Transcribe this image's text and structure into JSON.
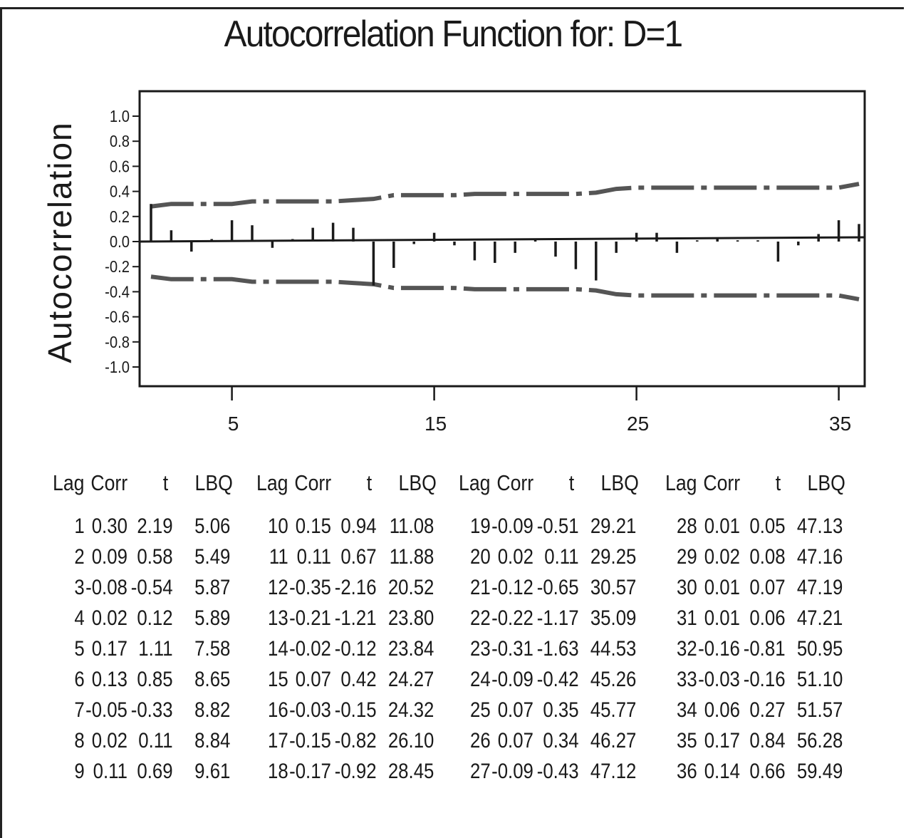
{
  "chart_data": {
    "type": "bar",
    "title": "Autocorrelation Function for: D=1",
    "ylabel": "Autocorrelation",
    "xlabel": "",
    "ylim": [
      -1.0,
      1.0
    ],
    "yticks": [
      "1.0",
      "0.8",
      "0.6",
      "0.4",
      "0.2",
      "0.0",
      "-0.2",
      "-0.4",
      "-0.6",
      "-0.8",
      "-1.0"
    ],
    "xticks": [
      "5",
      "15",
      "25",
      "35"
    ],
    "xtick_values": [
      5,
      15,
      25,
      35
    ],
    "lags": [
      1,
      2,
      3,
      4,
      5,
      6,
      7,
      8,
      9,
      10,
      11,
      12,
      13,
      14,
      15,
      16,
      17,
      18,
      19,
      20,
      21,
      22,
      23,
      24,
      25,
      26,
      27,
      28,
      29,
      30,
      31,
      32,
      33,
      34,
      35,
      36
    ],
    "values": [
      0.3,
      0.09,
      -0.08,
      0.02,
      0.17,
      0.13,
      -0.05,
      0.02,
      0.11,
      0.15,
      0.11,
      -0.35,
      -0.21,
      -0.02,
      0.07,
      -0.03,
      -0.15,
      -0.17,
      -0.09,
      0.02,
      -0.12,
      -0.22,
      -0.31,
      -0.09,
      0.07,
      0.07,
      -0.09,
      0.01,
      0.02,
      0.01,
      0.01,
      -0.16,
      -0.03,
      0.06,
      0.17,
      0.14
    ],
    "confidence_limit_upper": [
      0.28,
      0.3,
      0.3,
      0.3,
      0.3,
      0.32,
      0.32,
      0.32,
      0.32,
      0.32,
      0.33,
      0.34,
      0.37,
      0.37,
      0.37,
      0.37,
      0.38,
      0.38,
      0.38,
      0.38,
      0.38,
      0.38,
      0.39,
      0.42,
      0.43,
      0.43,
      0.43,
      0.43,
      0.43,
      0.43,
      0.43,
      0.43,
      0.43,
      0.43,
      0.43,
      0.46
    ],
    "confidence_limit_lower": [
      -0.28,
      -0.3,
      -0.3,
      -0.3,
      -0.3,
      -0.32,
      -0.32,
      -0.32,
      -0.32,
      -0.32,
      -0.33,
      -0.34,
      -0.37,
      -0.37,
      -0.37,
      -0.37,
      -0.38,
      -0.38,
      -0.38,
      -0.38,
      -0.38,
      -0.38,
      -0.39,
      -0.42,
      -0.43,
      -0.43,
      -0.43,
      -0.43,
      -0.43,
      -0.43,
      -0.43,
      -0.43,
      -0.43,
      -0.43,
      -0.43,
      -0.46
    ],
    "grid": false
  },
  "table": {
    "headers": [
      "Lag",
      "Corr",
      "t",
      "LBQ"
    ],
    "columns": [
      [
        [
          "1",
          "0.30",
          "2.19",
          "5.06"
        ],
        [
          "2",
          "0.09",
          "0.58",
          "5.49"
        ],
        [
          "3",
          "-0.08",
          "-0.54",
          "5.87"
        ],
        [
          "4",
          "0.02",
          "0.12",
          "5.89"
        ],
        [
          "5",
          "0.17",
          "1.11",
          "7.58"
        ],
        [
          "6",
          "0.13",
          "0.85",
          "8.65"
        ],
        [
          "7",
          "-0.05",
          "-0.33",
          "8.82"
        ],
        [
          "8",
          "0.02",
          "0.11",
          "8.84"
        ],
        [
          "9",
          "0.11",
          "0.69",
          "9.61"
        ]
      ],
      [
        [
          "10",
          "0.15",
          "0.94",
          "11.08"
        ],
        [
          "11",
          "0.11",
          "0.67",
          "11.88"
        ],
        [
          "12",
          "-0.35",
          "-2.16",
          "20.52"
        ],
        [
          "13",
          "-0.21",
          "-1.21",
          "23.80"
        ],
        [
          "14",
          "-0.02",
          "-0.12",
          "23.84"
        ],
        [
          "15",
          "0.07",
          "0.42",
          "24.27"
        ],
        [
          "16",
          "-0.03",
          "-0.15",
          "24.32"
        ],
        [
          "17",
          "-0.15",
          "-0.82",
          "26.10"
        ],
        [
          "18",
          "-0.17",
          "-0.92",
          "28.45"
        ]
      ],
      [
        [
          "19",
          "-0.09",
          "-0.51",
          "29.21"
        ],
        [
          "20",
          "0.02",
          "0.11",
          "29.25"
        ],
        [
          "21",
          "-0.12",
          "-0.65",
          "30.57"
        ],
        [
          "22",
          "-0.22",
          "-1.17",
          "35.09"
        ],
        [
          "23",
          "-0.31",
          "-1.63",
          "44.53"
        ],
        [
          "24",
          "-0.09",
          "-0.42",
          "45.26"
        ],
        [
          "25",
          "0.07",
          "0.35",
          "45.77"
        ],
        [
          "26",
          "0.07",
          "0.34",
          "46.27"
        ],
        [
          "27",
          "-0.09",
          "-0.43",
          "47.12"
        ]
      ],
      [
        [
          "28",
          "0.01",
          "0.05",
          "47.13"
        ],
        [
          "29",
          "0.02",
          "0.08",
          "47.16"
        ],
        [
          "30",
          "0.01",
          "0.07",
          "47.19"
        ],
        [
          "31",
          "0.01",
          "0.06",
          "47.21"
        ],
        [
          "32",
          "-0.16",
          "-0.81",
          "50.95"
        ],
        [
          "33",
          "-0.03",
          "-0.16",
          "51.10"
        ],
        [
          "34",
          "0.06",
          "0.27",
          "51.57"
        ],
        [
          "35",
          "0.17",
          "0.84",
          "56.28"
        ],
        [
          "36",
          "0.14",
          "0.66",
          "59.49"
        ]
      ]
    ]
  },
  "colors": {
    "ink": "#1a1a1a",
    "limit_line": "#555555",
    "background": "#ffffff"
  }
}
